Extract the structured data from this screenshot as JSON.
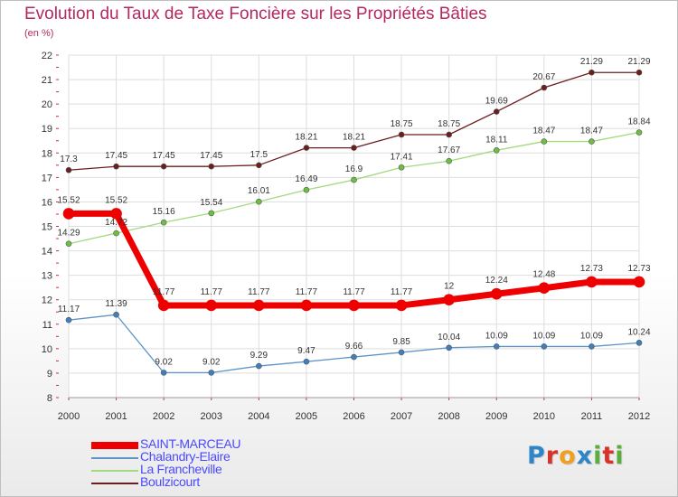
{
  "title": "Evolution du Taux de Taxe Foncière sur les Propriétés Bâties",
  "subtitle": "(en %)",
  "logo": {
    "text": "Proxiti",
    "letters": [
      {
        "ch": "P",
        "color": "#2e86c8"
      },
      {
        "ch": "r",
        "color": "#d9322b"
      },
      {
        "ch": "o",
        "color": "#f0a020"
      },
      {
        "ch": "x",
        "color": "#2e86c8"
      },
      {
        "ch": "i",
        "color": "#5aae3c"
      },
      {
        "ch": "t",
        "color": "#d9322b"
      },
      {
        "ch": "i",
        "color": "#5aae3c"
      }
    ]
  },
  "chart_data": {
    "type": "line",
    "title": "Evolution du Taux de Taxe Foncière sur les Propriétés Bâties",
    "ylabel": "(en %)",
    "xlabel": "",
    "ylim": [
      8,
      22
    ],
    "yticks": [
      8,
      9,
      10,
      11,
      12,
      13,
      14,
      15,
      16,
      17,
      18,
      19,
      20,
      21,
      22
    ],
    "categories": [
      "2000",
      "2001",
      "2002",
      "2003",
      "2004",
      "2005",
      "2006",
      "2007",
      "2008",
      "2009",
      "2010",
      "2011",
      "2012"
    ],
    "legend_position": "bottom-left",
    "series": [
      {
        "name": "Boulzicourt",
        "color": "#6b1e1e",
        "point_color": "#6b1e1e",
        "width": 1.3,
        "values": [
          17.3,
          17.45,
          17.45,
          17.45,
          17.5,
          18.21,
          18.21,
          18.75,
          18.75,
          19.69,
          20.67,
          21.29,
          21.29
        ],
        "labels": [
          "17.3",
          "17.45",
          "17.45",
          "17.45",
          "17.5",
          "18.21",
          "18.21",
          "18.75",
          "18.75",
          "19.69",
          "20.67",
          "21.29",
          "21.29"
        ]
      },
      {
        "name": "La Francheville",
        "color": "#a3d97f",
        "point_color": "#6cc040",
        "width": 1.3,
        "values": [
          14.29,
          14.72,
          15.16,
          15.54,
          16.01,
          16.49,
          16.9,
          17.41,
          17.67,
          18.11,
          18.47,
          18.47,
          18.84
        ],
        "labels": [
          "14.29",
          "14.72",
          "15.16",
          "15.54",
          "16.01",
          "16.49",
          "16.9",
          "17.41",
          "17.67",
          "18.11",
          "18.47",
          "18.47",
          "18.84"
        ]
      },
      {
        "name": "Chalandry-Elaire",
        "color": "#5d95c8",
        "point_color": "#3f7fbf",
        "width": 1.3,
        "values": [
          11.17,
          11.39,
          9.02,
          9.02,
          9.29,
          9.47,
          9.66,
          9.85,
          10.04,
          10.09,
          10.09,
          10.09,
          10.24
        ],
        "labels": [
          "11.17",
          "11.39",
          "9.02",
          "9.02",
          "9.29",
          "9.47",
          "9.66",
          "9.85",
          "10.04",
          "10.09",
          "10.09",
          "10.09",
          "10.24"
        ]
      },
      {
        "name": "SAINT-MARCEAU",
        "color": "#ee0000",
        "point_color": "#ee0000",
        "width": 7,
        "values": [
          15.52,
          15.52,
          11.77,
          11.77,
          11.77,
          11.77,
          11.77,
          11.77,
          12,
          12.24,
          12.48,
          12.73,
          12.73
        ],
        "labels": [
          "15.52",
          "15.52",
          "11.77",
          "11.77",
          "11.77",
          "11.77",
          "11.77",
          "11.77",
          "12",
          "12.24",
          "12.48",
          "12.73",
          "12.73"
        ]
      }
    ],
    "legend_order": [
      "SAINT-MARCEAU",
      "Chalandry-Elaire",
      "La Francheville",
      "Boulzicourt"
    ]
  }
}
